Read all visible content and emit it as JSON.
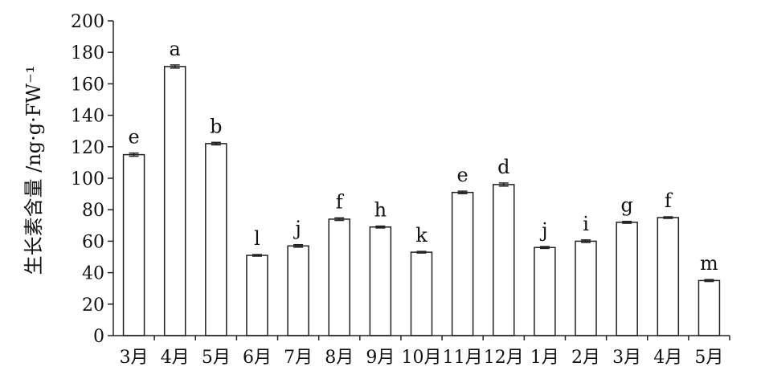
{
  "chart_data": {
    "type": "bar",
    "ylabel": "生长素含量 /ng·g·FW⁻¹",
    "xlabel": "",
    "ylim": [
      0,
      200
    ],
    "yticks": [
      0,
      20,
      40,
      60,
      80,
      100,
      120,
      140,
      160,
      180,
      200
    ],
    "categories": [
      "3月",
      "4月",
      "5月",
      "6月",
      "7月",
      "8月",
      "9月",
      "10月",
      "11月",
      "12月",
      "1月",
      "2月",
      "3月",
      "4月",
      "5月"
    ],
    "values": [
      115,
      171,
      122,
      51,
      57,
      74,
      69,
      53,
      91,
      96,
      56,
      60,
      72,
      75,
      35
    ],
    "errors": [
      1,
      1,
      0.8,
      0.5,
      0.8,
      0.8,
      0.6,
      0.5,
      0.8,
      1,
      0.6,
      0.8,
      0.6,
      0.5,
      0.6
    ],
    "significance": [
      "e",
      "a",
      "b",
      "l",
      "j",
      "f",
      "h",
      "k",
      "e",
      "d",
      "j",
      "i",
      "g",
      "f",
      "m"
    ],
    "colors": {
      "bar_fill": "#ffffff",
      "bar_stroke": "#222222"
    }
  }
}
